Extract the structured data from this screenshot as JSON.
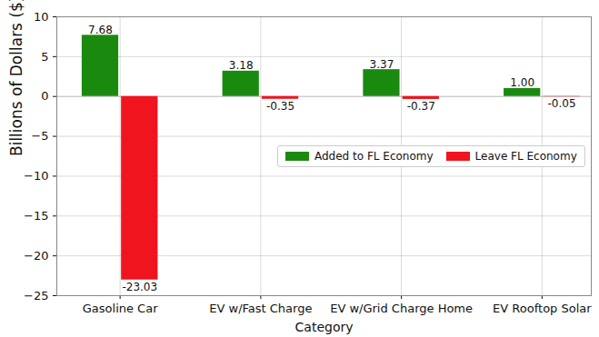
{
  "chart_data": {
    "type": "bar",
    "x_label": "Category",
    "y_label": "Billions of Dollars ($)",
    "categories": [
      "Gasoline Car",
      "EV w/Fast Charge",
      "EV w/Grid Charge Home",
      "EV Rooftop Solar"
    ],
    "series": [
      {
        "name": "Added to FL Economy",
        "color": "#1a8a0f",
        "values": [
          7.68,
          3.18,
          3.37,
          1.0
        ],
        "value_labels": [
          "7.68",
          "3.18",
          "3.37",
          "1.00"
        ]
      },
      {
        "name": "Leave FL Economy",
        "color": "#f0141e",
        "values": [
          -23.03,
          -0.35,
          -0.37,
          -0.05
        ],
        "value_labels": [
          "-23.03",
          "-0.35",
          "-0.37",
          "-0.05"
        ]
      }
    ],
    "ylim": [
      -25,
      10
    ],
    "yticks": [
      -25,
      -20,
      -15,
      -10,
      -5,
      0,
      5,
      10
    ],
    "grid": true,
    "legend": "center right",
    "data_labels": true
  }
}
